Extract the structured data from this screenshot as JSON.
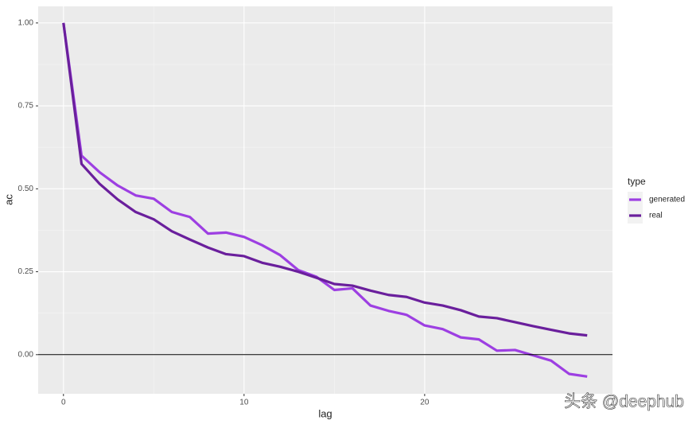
{
  "chart_data": {
    "type": "line",
    "x_label": "lag",
    "y_label": "ac",
    "x": [
      0,
      1,
      2,
      3,
      4,
      5,
      6,
      7,
      8,
      9,
      10,
      11,
      12,
      13,
      14,
      15,
      16,
      17,
      18,
      19,
      20,
      21,
      22,
      23,
      24,
      25,
      26,
      27,
      28,
      29
    ],
    "series": [
      {
        "name": "generated",
        "color": "#9d3fe2",
        "values": [
          1.0,
          0.6,
          0.55,
          0.51,
          0.48,
          0.47,
          0.43,
          0.415,
          0.365,
          0.368,
          0.355,
          0.33,
          0.3,
          0.255,
          0.235,
          0.195,
          0.2,
          0.148,
          0.132,
          0.12,
          0.088,
          0.077,
          0.052,
          0.046,
          0.012,
          0.014,
          -0.002,
          -0.018,
          -0.058,
          -0.066
        ]
      },
      {
        "name": "real",
        "color": "#6a1f9c",
        "values": [
          1.0,
          0.575,
          0.515,
          0.468,
          0.43,
          0.408,
          0.372,
          0.347,
          0.323,
          0.303,
          0.297,
          0.277,
          0.265,
          0.25,
          0.232,
          0.213,
          0.208,
          0.193,
          0.18,
          0.174,
          0.157,
          0.148,
          0.134,
          0.115,
          0.11,
          0.098,
          0.086,
          0.075,
          0.064,
          0.058
        ]
      }
    ],
    "xlim": [
      -1.4,
      30.4
    ],
    "xticks": [
      0,
      10,
      20
    ],
    "ylim": [
      -0.118,
      1.05
    ],
    "yticks": [
      {
        "value": 0,
        "label": "0.00"
      },
      {
        "value": 0.25,
        "label": "0.25"
      },
      {
        "value": 0.5,
        "label": "0.50"
      },
      {
        "value": 0.75,
        "label": "0.75"
      },
      {
        "value": 1,
        "label": "1.00"
      }
    ],
    "reference_line": 0,
    "grid": true,
    "legend_title": "type",
    "legend_position": "right",
    "watermark": "头条 @deephub"
  }
}
